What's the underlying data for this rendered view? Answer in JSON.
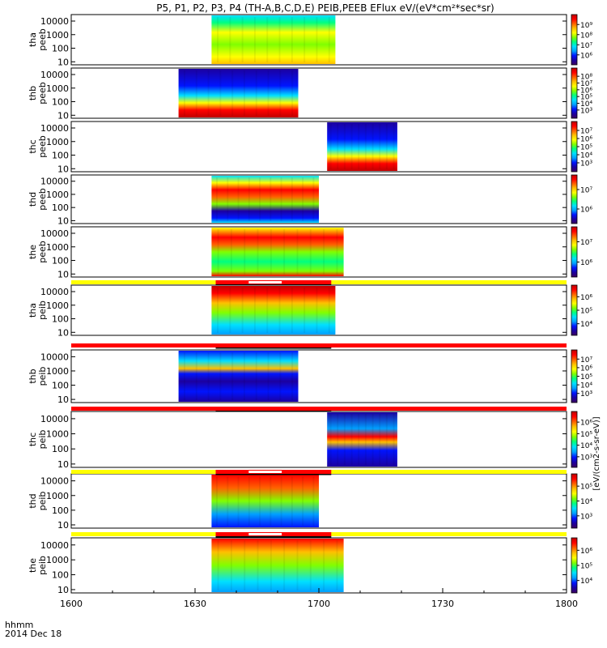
{
  "title": "P5, P1, P2, P3, P4 (TH-A,B,C,D,E) PEIB,PEEB EFlux eV/(eV*cm²*sec*sr)",
  "footer": {
    "time_label": "hhmm",
    "date_label": "2014 Dec 18"
  },
  "colorbar_unit_label": "[eV/(cm2-s-sr-eV)]",
  "colors": {
    "spectrogram_scale": [
      "#3c0060",
      "#1c00a0",
      "#0014ff",
      "#00a0ff",
      "#00e0ff",
      "#00ff80",
      "#80ff00",
      "#ffff00",
      "#ffc000",
      "#ff6000",
      "#ff0000",
      "#c00000"
    ],
    "flag_yellow": "#ffff00",
    "flag_red": "#ff0000",
    "flag_black": "#000000"
  },
  "chart_data": {
    "type": "heatmap",
    "x_axis": {
      "range": [
        "1600",
        "1800"
      ],
      "tick_labels": [
        "1600",
        "1630",
        "1700",
        "1730",
        "1800"
      ]
    },
    "y_axis": {
      "scale": "log",
      "unit": "eV",
      "tick_labels": [
        "10",
        "100",
        "1000",
        "10000"
      ]
    },
    "panels": [
      {
        "label": [
          "tha",
          "peeb"
        ],
        "t_start": "1634",
        "t_end": "1704",
        "colorbar_ticks": [
          "10⁶",
          "10⁷",
          "10⁸",
          "10⁹"
        ],
        "dominant": "green-yellow"
      },
      {
        "label": [
          "thb",
          "peeb"
        ],
        "t_start": "1626",
        "t_end": "1655",
        "colorbar_ticks": [
          "10³",
          "10⁴",
          "10⁵",
          "10⁶",
          "10⁷",
          "10⁸"
        ],
        "dominant": "blue-to-red"
      },
      {
        "label": [
          "thc",
          "peeb"
        ],
        "t_start": "1702",
        "t_end": "1719",
        "colorbar_ticks": [
          "10³",
          "10⁴",
          "10⁵",
          "10⁶",
          "10⁷"
        ],
        "dominant": "blue-to-red"
      },
      {
        "label": [
          "thd",
          "peeb"
        ],
        "t_start": "1634",
        "t_end": "1700",
        "colorbar_ticks": [
          "10⁶",
          "10⁷"
        ],
        "dominant": "red-blue-band"
      },
      {
        "label": [
          "the",
          "peeb"
        ],
        "t_start": "1634",
        "t_end": "1706",
        "colorbar_ticks": [
          "10⁶",
          "10⁷"
        ],
        "dominant": "red-green"
      },
      {
        "label": [
          "tha",
          "peib"
        ],
        "t_start": "1634",
        "t_end": "1704",
        "colorbar_ticks": [
          "10⁴",
          "10⁵",
          "10⁶"
        ],
        "dominant": "red-cyan"
      },
      {
        "label": [
          "thb",
          "peib"
        ],
        "t_start": "1626",
        "t_end": "1655",
        "colorbar_ticks": [
          "10³",
          "10⁴",
          "10⁵",
          "10⁶",
          "10⁷"
        ],
        "dominant": "mixed"
      },
      {
        "label": [
          "thc",
          "peib"
        ],
        "t_start": "1702",
        "t_end": "1719",
        "colorbar_ticks": [
          "10³",
          "10⁴",
          "10⁵",
          "10⁶"
        ],
        "dominant": "blue-red-band"
      },
      {
        "label": [
          "thd",
          "peib"
        ],
        "t_start": "1634",
        "t_end": "1700",
        "colorbar_ticks": [
          "10³",
          "10⁴",
          "10⁵"
        ],
        "dominant": "red-to-blue"
      },
      {
        "label": [
          "the",
          "peib"
        ],
        "t_start": "1634",
        "t_end": "1706",
        "colorbar_ticks": [
          "10⁴",
          "10⁵",
          "10⁶"
        ],
        "dominant": "red-to-cyan"
      }
    ]
  }
}
